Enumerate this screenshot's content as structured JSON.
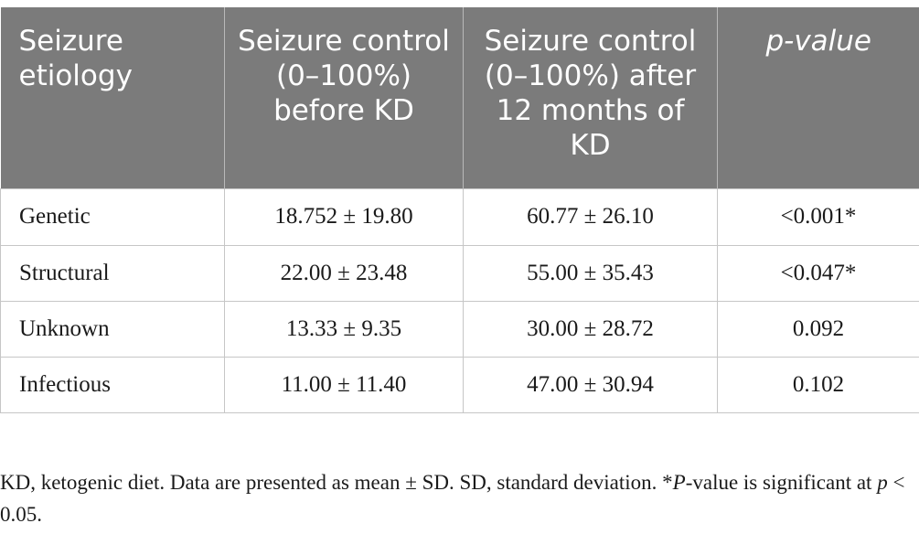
{
  "table": {
    "headers": [
      "Seizure etiology",
      "Seizure control (0–100%) before KD",
      "Seizure control (0–100%) after 12 months of KD",
      "p-value"
    ],
    "rows": [
      [
        "Genetic",
        "18.752 ± 19.80",
        "60.77 ± 26.10",
        "<0.001*"
      ],
      [
        "Structural",
        "22.00 ± 23.48",
        "55.00 ± 35.43",
        "<0.047*"
      ],
      [
        "Unknown",
        "13.33 ± 9.35",
        "30.00 ± 28.72",
        "0.092"
      ],
      [
        "Infectious",
        "11.00 ± 11.40",
        "47.00 ± 30.94",
        "0.102"
      ]
    ],
    "header_bg": "#7b7b7b"
  },
  "footnote": {
    "part1": "KD, ketogenic diet. Data are presented as mean ± SD. SD, standard deviation. *",
    "part2": "P",
    "part3": "-value is significant at ",
    "part4": "p",
    "part5": " < 0.05."
  }
}
